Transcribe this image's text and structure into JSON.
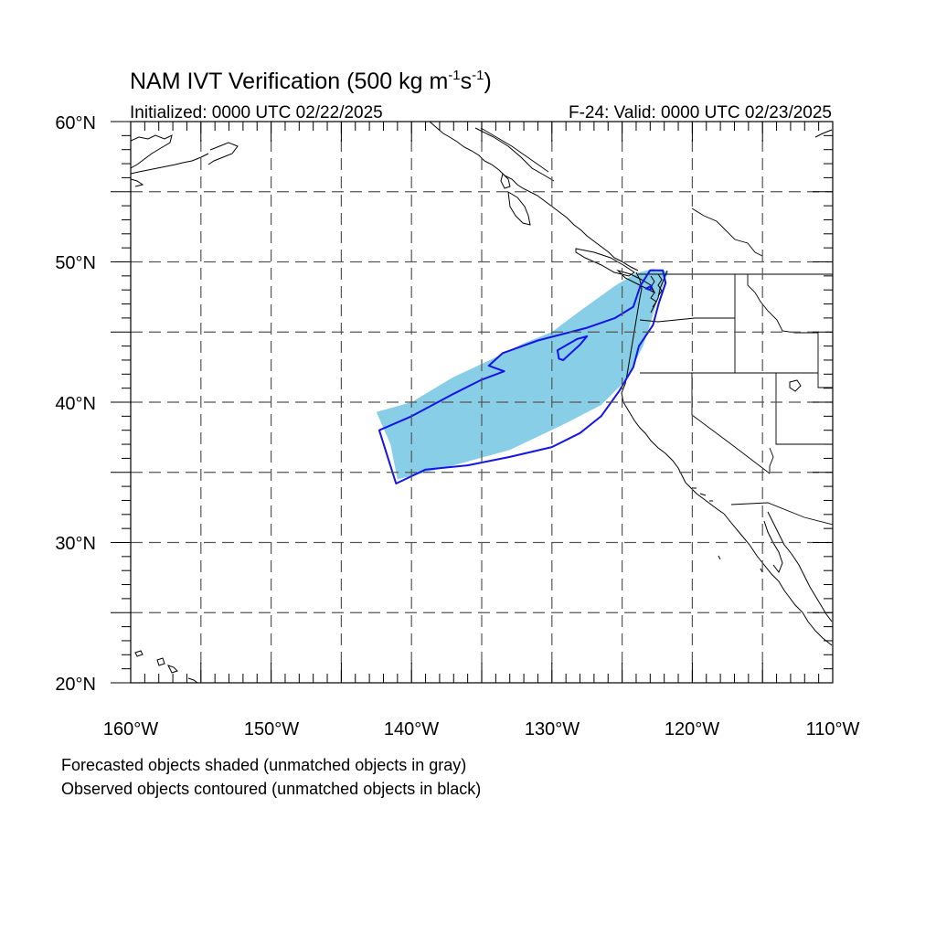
{
  "title": {
    "main_prefix": "NAM IVT Verification (500 kg m",
    "sup1": "-1",
    "mid": "s",
    "sup2": "-1",
    "suffix": ")",
    "initialized": "Initialized: 0000 UTC 02/22/2025",
    "valid": "F-24: Valid: 0000 UTC 02/23/2025"
  },
  "axes": {
    "lon_labels": [
      "160°W",
      "150°W",
      "140°W",
      "130°W",
      "120°W",
      "110°W"
    ],
    "lat_labels": [
      "60°N",
      "50°N",
      "40°N",
      "30°N",
      "20°N"
    ],
    "lon_range": [
      -160,
      -110
    ],
    "lat_range": [
      20,
      60
    ]
  },
  "captions": {
    "line1": "Forecasted objects shaded (unmatched objects in gray)",
    "line2": "Observed objects contoured (unmatched objects in black)"
  },
  "colors": {
    "forecast_fill": "#87cee6",
    "observed_contour": "#1414e6",
    "grid": "#555555"
  },
  "objects": {
    "forecast": [
      [
        -141.5,
        37.0
      ],
      [
        -142.5,
        39.3
      ],
      [
        -140,
        40.0
      ],
      [
        -137,
        41.8
      ],
      [
        -134,
        43.2
      ],
      [
        -132,
        44.2
      ],
      [
        -130,
        45.0
      ],
      [
        -128,
        46.5
      ],
      [
        -125.5,
        48.3
      ],
      [
        -124,
        49.2
      ],
      [
        -122.8,
        49.5
      ],
      [
        -121.7,
        49.3
      ],
      [
        -122.4,
        47.5
      ],
      [
        -123.5,
        44.0
      ],
      [
        -124.8,
        41.5
      ],
      [
        -126.5,
        39.8
      ],
      [
        -129,
        38.5
      ],
      [
        -133,
        36.6
      ],
      [
        -137,
        35.5
      ],
      [
        -141,
        34.5
      ]
    ],
    "observed_outer": [
      [
        -142.3,
        38.0
      ],
      [
        -141.1,
        34.2
      ],
      [
        -139.0,
        35.2
      ],
      [
        -136.0,
        35.5
      ],
      [
        -133.0,
        36.1
      ],
      [
        -130.0,
        36.8
      ],
      [
        -128.0,
        37.8
      ],
      [
        -126.5,
        39.0
      ],
      [
        -125.2,
        40.8
      ],
      [
        -124.2,
        42.5
      ],
      [
        -123.8,
        44.0
      ],
      [
        -122.8,
        45.5
      ],
      [
        -122.4,
        47.0
      ],
      [
        -121.9,
        48.5
      ],
      [
        -122.1,
        49.4
      ],
      [
        -123.0,
        49.4
      ],
      [
        -123.7,
        48.3
      ],
      [
        -124.2,
        46.8
      ],
      [
        -125.5,
        46.0
      ],
      [
        -127.5,
        45.3
      ],
      [
        -131.0,
        44.4
      ],
      [
        -133.5,
        43.5
      ],
      [
        -134.5,
        42.6
      ],
      [
        -133.4,
        42.2
      ],
      [
        -135.0,
        41.6
      ],
      [
        -137.0,
        40.6
      ],
      [
        -140.0,
        39.0
      ],
      [
        -142.3,
        38.0
      ]
    ],
    "observed_hole": [
      [
        -129.2,
        43.0
      ],
      [
        -128.0,
        44.1
      ],
      [
        -127.5,
        44.7
      ],
      [
        -128.2,
        44.5
      ],
      [
        -129.6,
        43.7
      ],
      [
        -129.5,
        43.1
      ]
    ],
    "observed_small": [
      [
        -123.3,
        48.1
      ],
      [
        -122.9,
        48.3
      ],
      [
        -123.0,
        48.0
      ],
      [
        -123.3,
        48.1
      ]
    ]
  }
}
